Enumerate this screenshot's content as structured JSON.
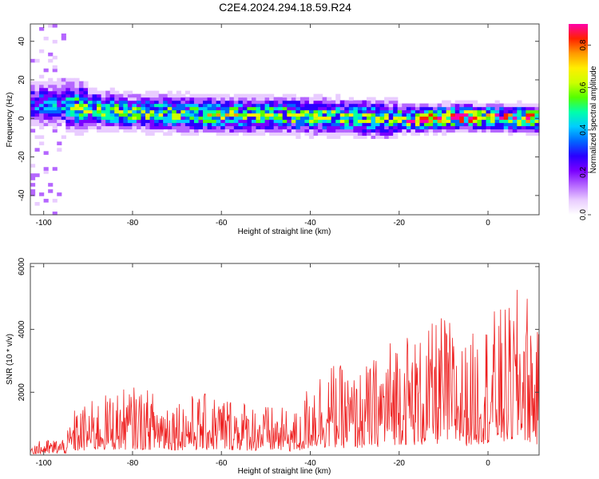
{
  "title": "C2E4.2024.294.18.59.R24",
  "colors": {
    "snr_line": "#ee2222",
    "frame": "#444444",
    "colormap": [
      "#ffffff",
      "#e9ccff",
      "#b566ff",
      "#7a00ff",
      "#2a00ff",
      "#0066ff",
      "#00ccff",
      "#00ffaa",
      "#55ff00",
      "#ccff00",
      "#ffee00",
      "#ff9900",
      "#ff2200",
      "#ff00aa"
    ]
  },
  "chart_data": [
    {
      "type": "heatmap",
      "xlabel": "Height of straight line (km)",
      "ylabel": "Frequency (Hz)",
      "xlim": [
        -103,
        11.5
      ],
      "ylim": [
        -50,
        49
      ],
      "xticks": [
        -100,
        -80,
        -60,
        -40,
        -20,
        0
      ],
      "xtick_labels": [
        "-100",
        "-80",
        "-60",
        "-40",
        "-20",
        "0"
      ],
      "yticks": [
        -40,
        -20,
        0,
        20,
        40
      ],
      "ytick_labels": [
        "-40",
        "-20",
        "0",
        "20",
        "40"
      ],
      "colorbar": {
        "label": "Normalized spectral amplitude",
        "range": [
          0,
          0.9
        ],
        "ticks": [
          0,
          0.2,
          0.4,
          0.6,
          0.8
        ],
        "tick_labels": [
          "0.0",
          "0.2",
          "0.4",
          "0.6",
          "0.8"
        ]
      },
      "ridge": {
        "x": [
          -103,
          -95,
          -85,
          -75,
          -65,
          -55,
          -45,
          -35,
          -25,
          -15,
          -5,
          5,
          11.5
        ],
        "center_hz": [
          8,
          7,
          4,
          3,
          2,
          2,
          2,
          1,
          0,
          0,
          1,
          0,
          0
        ]
      }
    },
    {
      "type": "line",
      "xlabel": "Height of straight line (km)",
      "ylabel": "SNR (10 * v/v)",
      "xlim": [
        -103,
        11.5
      ],
      "ylim": [
        0,
        6100
      ],
      "xticks": [
        -100,
        -80,
        -60,
        -40,
        -20,
        0
      ],
      "xtick_labels": [
        "-100",
        "-80",
        "-60",
        "-40",
        "-20",
        "0"
      ],
      "yticks": [
        2000,
        4000,
        6000
      ],
      "ytick_labels": [
        "2000",
        "4000",
        "6000"
      ],
      "envelope": {
        "x": [
          -103,
          -95,
          -93,
          -85,
          -80,
          -70,
          -60,
          -50,
          -42,
          -40,
          -35,
          -30,
          -25,
          -20,
          -15,
          -10,
          -5,
          0,
          5,
          8,
          11.5
        ],
        "y": [
          400,
          600,
          1500,
          2000,
          2200,
          1900,
          2000,
          1600,
          1400,
          2800,
          3000,
          2600,
          3200,
          4200,
          3800,
          4600,
          3600,
          4600,
          4800,
          5800,
          3800
        ]
      }
    }
  ]
}
